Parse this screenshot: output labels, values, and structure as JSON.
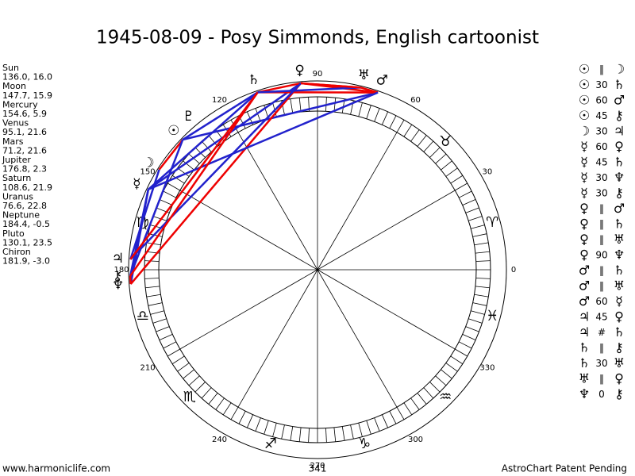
{
  "title": "1945-08-09 - Posy Simmonds, English cartoonist",
  "planets": [
    {
      "name": "Sun",
      "position": "136.0, 16.0",
      "glyph": "☉"
    },
    {
      "name": "Moon",
      "position": "147.7, 15.9",
      "glyph": "☽"
    },
    {
      "name": "Mercury",
      "position": "154.6, 5.9",
      "glyph": "☿"
    },
    {
      "name": "Venus",
      "position": "95.1, 21.6",
      "glyph": "♀"
    },
    {
      "name": "Mars",
      "position": "71.2, 21.6",
      "glyph": "♂"
    },
    {
      "name": "Jupiter",
      "position": "176.8, 2.3",
      "glyph": "♃"
    },
    {
      "name": "Saturn",
      "position": "108.6, 21.9",
      "glyph": "♄"
    },
    {
      "name": "Uranus",
      "position": "76.6, 22.8",
      "glyph": "♅"
    },
    {
      "name": "Neptune",
      "position": "184.4, -0.5",
      "glyph": "♆"
    },
    {
      "name": "Pluto",
      "position": "130.1, 23.5",
      "glyph": "♇"
    },
    {
      "name": "Chiron",
      "position": "181.9, -3.0",
      "glyph": "⚷"
    }
  ],
  "degree_labels": [
    0,
    30,
    60,
    90,
    120,
    150,
    180,
    210,
    240,
    270,
    300,
    330
  ],
  "signs": [
    {
      "glyph": "♈",
      "angle": 15
    },
    {
      "glyph": "♉",
      "angle": 45
    },
    {
      "glyph": "♍",
      "angle": 165
    },
    {
      "glyph": "♎",
      "angle": 195
    },
    {
      "glyph": "♏",
      "angle": 225
    },
    {
      "glyph": "♐",
      "angle": 255
    },
    {
      "glyph": "♑",
      "angle": 285
    },
    {
      "glyph": "♒",
      "angle": 315
    },
    {
      "glyph": "♓",
      "angle": 345
    }
  ],
  "aspects": [
    {
      "from": "☉",
      "aspect": "‖",
      "to": "☽"
    },
    {
      "from": "☉",
      "aspect": "30",
      "to": "♄"
    },
    {
      "from": "☉",
      "aspect": "60",
      "to": "♂"
    },
    {
      "from": "☉",
      "aspect": "45",
      "to": "⚷"
    },
    {
      "from": "☽",
      "aspect": "30",
      "to": "♃"
    },
    {
      "from": "☿",
      "aspect": "60",
      "to": "♀"
    },
    {
      "from": "☿",
      "aspect": "45",
      "to": "♄"
    },
    {
      "from": "☿",
      "aspect": "30",
      "to": "♆"
    },
    {
      "from": "☿",
      "aspect": "30",
      "to": "⚷"
    },
    {
      "from": "♀",
      "aspect": "‖",
      "to": "♂"
    },
    {
      "from": "♀",
      "aspect": "‖",
      "to": "♄"
    },
    {
      "from": "♀",
      "aspect": "‖",
      "to": "♅"
    },
    {
      "from": "♀",
      "aspect": "90",
      "to": "♆"
    },
    {
      "from": "♂",
      "aspect": "‖",
      "to": "♄"
    },
    {
      "from": "♂",
      "aspect": "‖",
      "to": "♅"
    },
    {
      "from": "♂",
      "aspect": "60",
      "to": "☿"
    },
    {
      "from": "♃",
      "aspect": "45",
      "to": "♀"
    },
    {
      "from": "♃",
      "aspect": "#",
      "to": "♄"
    },
    {
      "from": "♄",
      "aspect": "‖",
      "to": "⚷"
    },
    {
      "from": "♄",
      "aspect": "30",
      "to": "♅"
    },
    {
      "from": "♅",
      "aspect": "‖",
      "to": "♀"
    },
    {
      "from": "♆",
      "aspect": "0",
      "to": "⚷"
    }
  ],
  "footer": {
    "left": "www.harmoniclife.com",
    "center": "341",
    "right": "AstroChart Patent Pending"
  }
}
